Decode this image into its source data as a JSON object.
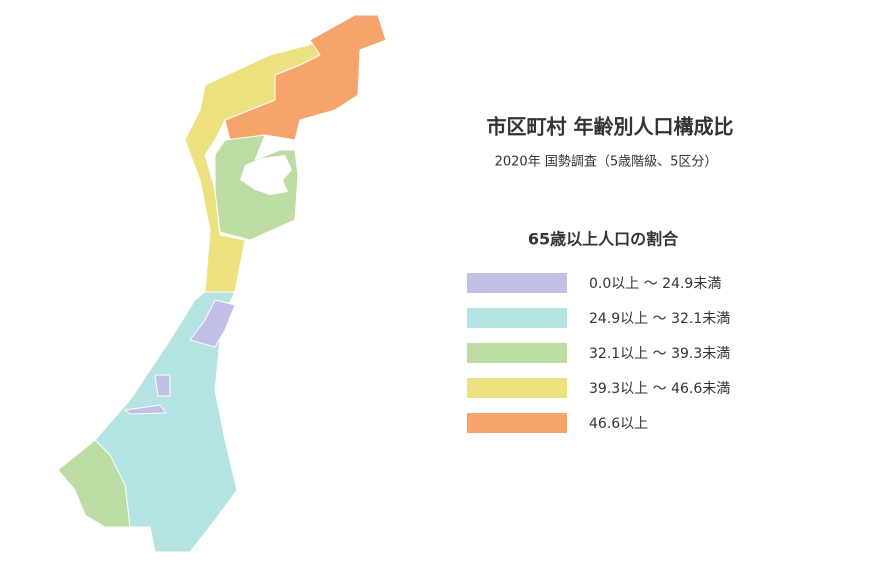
{
  "title": "市区町村 年齢別人口構成比",
  "subtitle": "2020年 国勢調査（5歳階級、5区分）",
  "legend": {
    "title": "65歳以上人口の割合",
    "items": [
      {
        "label": "0.0以上 〜 24.9未満",
        "color": "#c2bfe6"
      },
      {
        "label": "24.9以上 〜 32.1未満",
        "color": "#b3e3e3"
      },
      {
        "label": "32.1以上 〜 39.3未満",
        "color": "#bcdca3"
      },
      {
        "label": "39.3以上 〜 46.6未満",
        "color": "#ede07e"
      },
      {
        "label": "46.6以上",
        "color": "#f7a46c"
      }
    ]
  }
}
